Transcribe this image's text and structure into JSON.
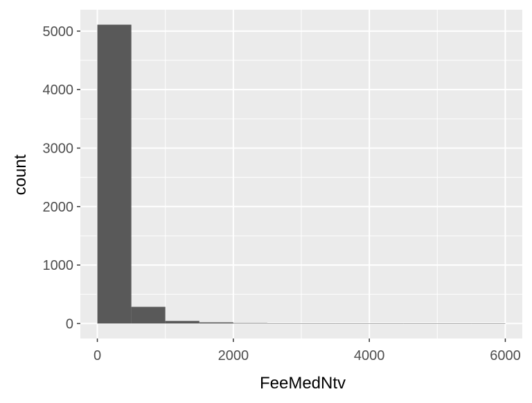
{
  "chart_data": {
    "type": "bar",
    "title": "",
    "xlabel": "FeeMedNtv",
    "ylabel": "count",
    "bin_width": 500,
    "bins": [
      {
        "x_start": 0,
        "x_end": 500,
        "count": 5110
      },
      {
        "x_start": 500,
        "x_end": 1000,
        "count": 285
      },
      {
        "x_start": 1000,
        "x_end": 1500,
        "count": 45
      },
      {
        "x_start": 1500,
        "x_end": 2000,
        "count": 20
      },
      {
        "x_start": 2000,
        "x_end": 2500,
        "count": 8
      },
      {
        "x_start": 2500,
        "x_end": 3000,
        "count": 5
      },
      {
        "x_start": 3000,
        "x_end": 3500,
        "count": 3
      },
      {
        "x_start": 3500,
        "x_end": 4000,
        "count": 0
      },
      {
        "x_start": 4000,
        "x_end": 4500,
        "count": 0
      },
      {
        "x_start": 4500,
        "x_end": 5000,
        "count": 0
      },
      {
        "x_start": 5000,
        "x_end": 5500,
        "count": 0
      },
      {
        "x_start": 5500,
        "x_end": 6000,
        "count": 0
      }
    ],
    "xlim": [
      -250,
      6250
    ],
    "ylim": [
      -256,
      5366
    ],
    "x_ticks": [
      0,
      2000,
      4000,
      6000
    ],
    "x_tick_labels": [
      "0",
      "2000",
      "4000",
      "6000"
    ],
    "y_ticks": [
      0,
      1000,
      2000,
      3000,
      4000,
      5000
    ],
    "y_tick_labels": [
      "0",
      "1000",
      "2000",
      "3000",
      "4000",
      "5000"
    ],
    "grid": true,
    "legend": "none",
    "colors": {
      "panel": "#ebebeb",
      "grid_major": "#ffffff",
      "bar_fill": "#595959",
      "tick_text": "#4d4d4d",
      "tick_mark": "#333333",
      "title_text": "#000000"
    }
  }
}
